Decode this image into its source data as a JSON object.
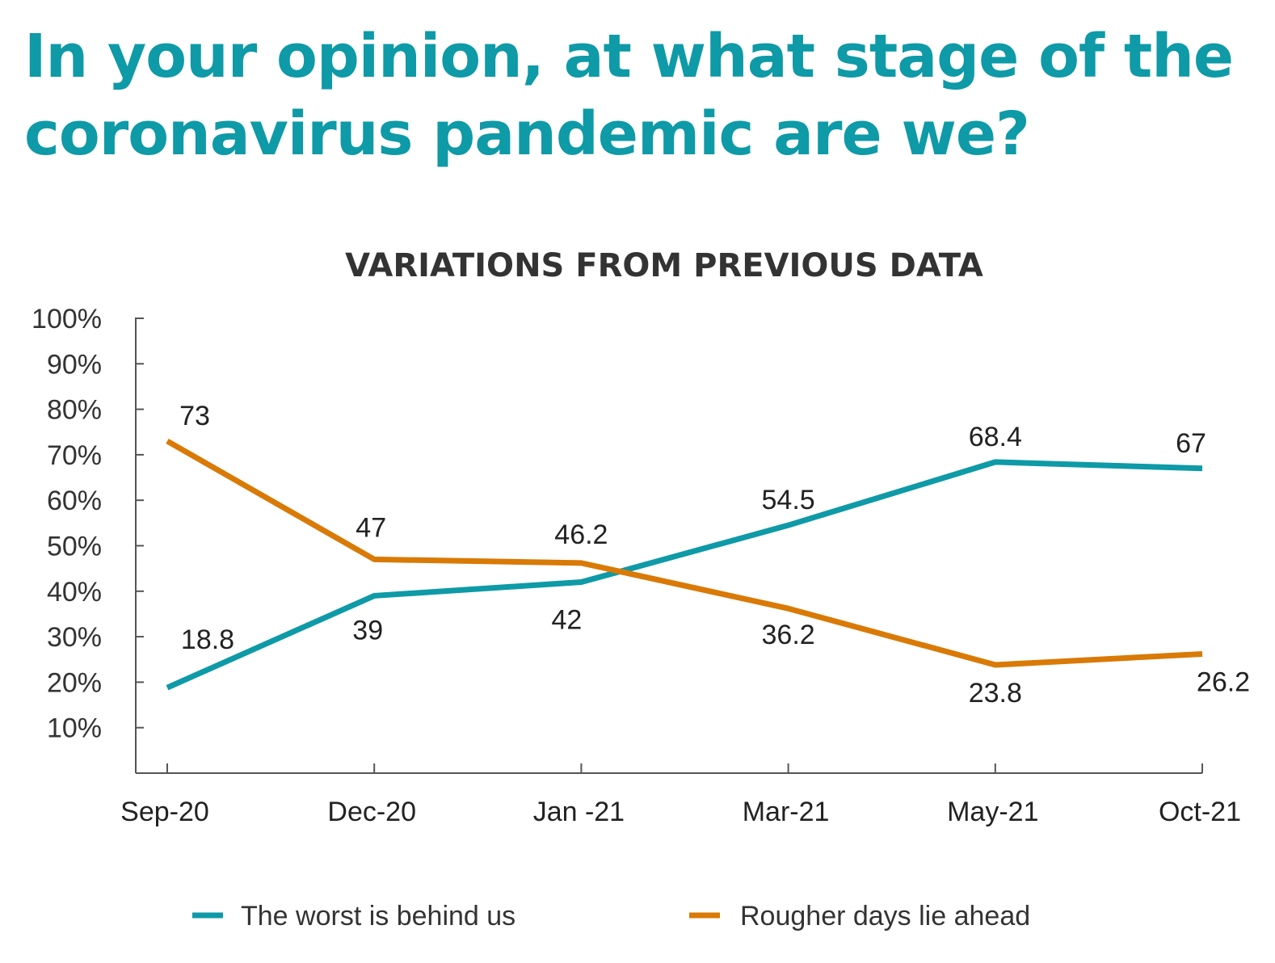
{
  "header": {
    "title_lines": [
      "In your opinion, at what stage of the",
      "coronavirus pandemic are we?"
    ]
  },
  "chart_data": {
    "type": "line",
    "title": "VARIATIONS FROM PREVIOUS DATA",
    "categories": [
      "Sep-20",
      "Dec-20",
      "Jan -21",
      "Mar-21",
      "May-21",
      "Oct-21"
    ],
    "y_ticks": [
      "10%",
      "20%",
      "30%",
      "40%",
      "50%",
      "60%",
      "70%",
      "80%",
      "90%",
      "100%"
    ],
    "ylim": [
      0,
      100
    ],
    "grid": false,
    "legend_position": "bottom",
    "series": [
      {
        "name": "The worst is behind us",
        "color": "#0e9aa7",
        "values": [
          18.8,
          39,
          42,
          54.5,
          68.4,
          67
        ],
        "labels": [
          "18.8",
          "39",
          "42",
          "54.5",
          "68.4",
          "67"
        ]
      },
      {
        "name": "Rougher days lie ahead",
        "color": "#d97a06",
        "values": [
          73,
          47,
          46.2,
          36.2,
          23.8,
          26.2
        ],
        "labels": [
          "73",
          "47",
          "46.2",
          "36.2",
          "23.8",
          "26.2"
        ]
      }
    ]
  }
}
